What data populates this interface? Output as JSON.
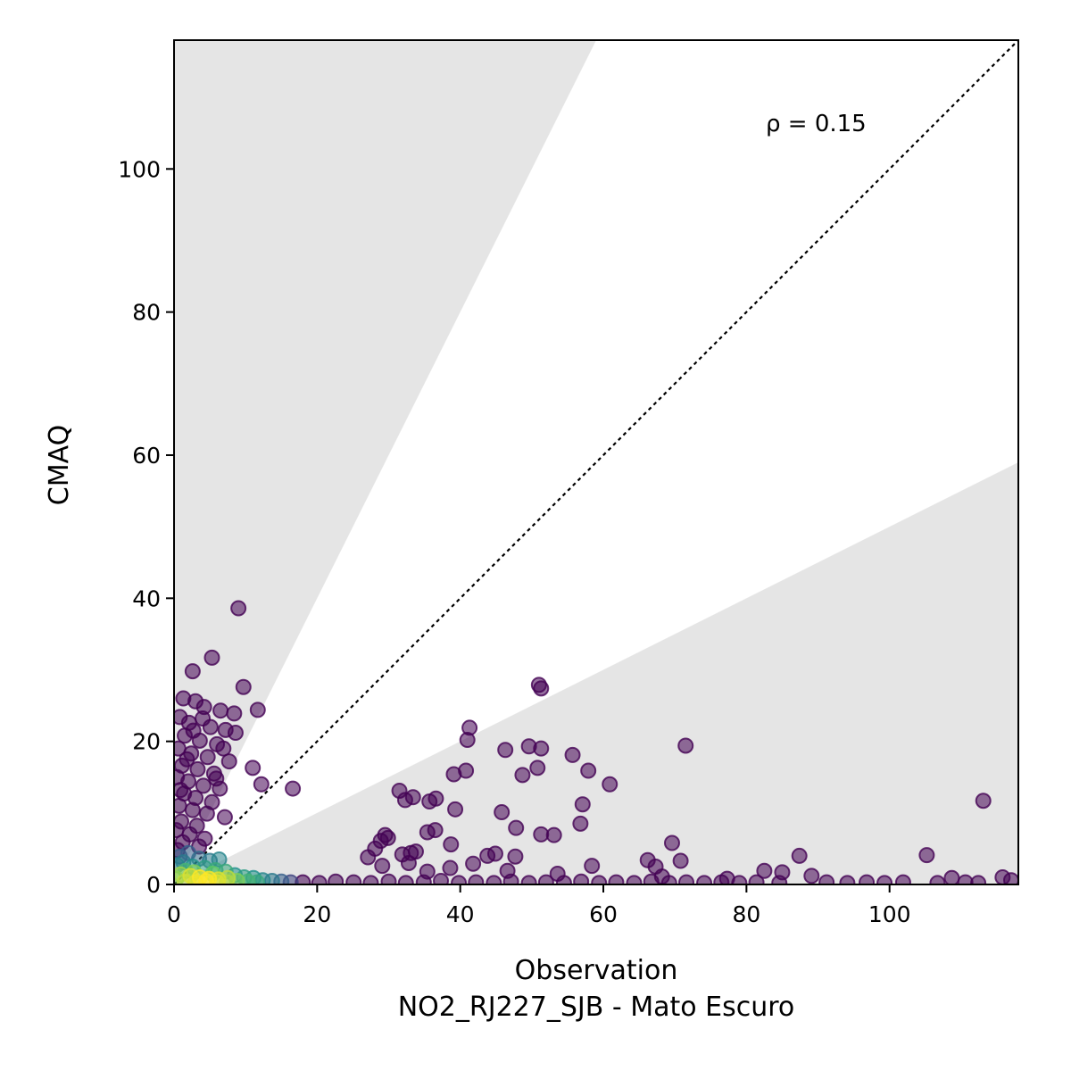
{
  "chart_data": {
    "type": "scatter",
    "xlabel": "Observation",
    "subtitle": "NO2_RJ227_SJB - Mato Escuro",
    "ylabel": "CMAQ",
    "annotation": "ρ = 0.15",
    "xlim": [
      0,
      118
    ],
    "ylim": [
      0,
      118
    ],
    "xticks": [
      0,
      20,
      40,
      60,
      80,
      100
    ],
    "yticks": [
      0,
      20,
      40,
      60,
      80,
      100
    ],
    "reference_line": "1:1 dotted",
    "shaded_regions": "outside factor-of-2 band (y > 2x and y < x/2)",
    "shade_color": "#e5e5e5",
    "colormap": "viridis (point density)",
    "point_colors": {
      "low_density": "#440154",
      "mid_density": "#21918c",
      "high_density": "#fde725"
    },
    "grid": false,
    "legend": "none",
    "points": [
      {
        "x": 9.0,
        "y": 38.6,
        "d": 0
      },
      {
        "x": 5.3,
        "y": 31.7,
        "d": 0
      },
      {
        "x": 2.6,
        "y": 29.8,
        "d": 0
      },
      {
        "x": 9.7,
        "y": 27.6,
        "d": 0
      },
      {
        "x": 11.7,
        "y": 24.4,
        "d": 0
      },
      {
        "x": 1.3,
        "y": 26.0,
        "d": 0
      },
      {
        "x": 3.0,
        "y": 25.6,
        "d": 0
      },
      {
        "x": 4.2,
        "y": 24.8,
        "d": 0
      },
      {
        "x": 6.5,
        "y": 24.3,
        "d": 0
      },
      {
        "x": 8.4,
        "y": 23.9,
        "d": 0
      },
      {
        "x": 0.8,
        "y": 23.4,
        "d": 0
      },
      {
        "x": 2.1,
        "y": 22.6,
        "d": 0
      },
      {
        "x": 5.1,
        "y": 22.0,
        "d": 0
      },
      {
        "x": 7.2,
        "y": 21.6,
        "d": 0
      },
      {
        "x": 8.6,
        "y": 21.2,
        "d": 0
      },
      {
        "x": 1.5,
        "y": 20.8,
        "d": 0
      },
      {
        "x": 3.6,
        "y": 20.1,
        "d": 0
      },
      {
        "x": 6.0,
        "y": 19.6,
        "d": 0
      },
      {
        "x": 0.6,
        "y": 19.0,
        "d": 0
      },
      {
        "x": 2.4,
        "y": 18.3,
        "d": 0
      },
      {
        "x": 4.7,
        "y": 17.8,
        "d": 0
      },
      {
        "x": 7.7,
        "y": 17.2,
        "d": 0
      },
      {
        "x": 1.1,
        "y": 16.6,
        "d": 0
      },
      {
        "x": 3.3,
        "y": 16.1,
        "d": 0
      },
      {
        "x": 5.6,
        "y": 15.5,
        "d": 0
      },
      {
        "x": 11.0,
        "y": 16.3,
        "d": 0
      },
      {
        "x": 0.4,
        "y": 15.0,
        "d": 0
      },
      {
        "x": 2.0,
        "y": 14.4,
        "d": 0
      },
      {
        "x": 4.1,
        "y": 13.8,
        "d": 0
      },
      {
        "x": 6.4,
        "y": 13.4,
        "d": 0
      },
      {
        "x": 12.2,
        "y": 14.0,
        "d": 0
      },
      {
        "x": 16.6,
        "y": 13.4,
        "d": 0
      },
      {
        "x": 1.4,
        "y": 12.7,
        "d": 0
      },
      {
        "x": 3.0,
        "y": 12.1,
        "d": 0
      },
      {
        "x": 5.3,
        "y": 11.5,
        "d": 0
      },
      {
        "x": 0.7,
        "y": 11.0,
        "d": 0
      },
      {
        "x": 2.6,
        "y": 10.4,
        "d": 0
      },
      {
        "x": 4.6,
        "y": 9.9,
        "d": 0
      },
      {
        "x": 7.1,
        "y": 9.4,
        "d": 0
      },
      {
        "x": 1.0,
        "y": 8.8,
        "d": 0
      },
      {
        "x": 3.2,
        "y": 8.2,
        "d": 0
      },
      {
        "x": 0.3,
        "y": 7.6,
        "d": 0
      },
      {
        "x": 2.2,
        "y": 7.0,
        "d": 0
      },
      {
        "x": 4.3,
        "y": 6.4,
        "d": 0
      },
      {
        "x": 1.2,
        "y": 5.9,
        "d": 0
      },
      {
        "x": 3.5,
        "y": 5.3,
        "d": 0
      },
      {
        "x": 0.5,
        "y": 4.8,
        "d": 0
      },
      {
        "x": 2.7,
        "y": 21.5,
        "d": 0
      },
      {
        "x": 4.0,
        "y": 23.2,
        "d": 0
      },
      {
        "x": 6.9,
        "y": 19.0,
        "d": 0
      },
      {
        "x": 1.8,
        "y": 17.5,
        "d": 0
      },
      {
        "x": 5.9,
        "y": 14.8,
        "d": 0
      },
      {
        "x": 0.9,
        "y": 13.2,
        "d": 0
      },
      {
        "x": 51.0,
        "y": 27.9,
        "d": 0
      },
      {
        "x": 51.3,
        "y": 27.4,
        "d": 0
      },
      {
        "x": 41.3,
        "y": 21.9,
        "d": 0
      },
      {
        "x": 41.0,
        "y": 20.2,
        "d": 0
      },
      {
        "x": 49.6,
        "y": 19.3,
        "d": 0
      },
      {
        "x": 51.3,
        "y": 19.0,
        "d": 0
      },
      {
        "x": 71.5,
        "y": 19.4,
        "d": 0
      },
      {
        "x": 46.3,
        "y": 18.8,
        "d": 0
      },
      {
        "x": 55.7,
        "y": 18.1,
        "d": 0
      },
      {
        "x": 50.8,
        "y": 16.3,
        "d": 0
      },
      {
        "x": 57.9,
        "y": 15.9,
        "d": 0
      },
      {
        "x": 40.8,
        "y": 15.9,
        "d": 0
      },
      {
        "x": 39.1,
        "y": 15.4,
        "d": 0
      },
      {
        "x": 48.7,
        "y": 15.3,
        "d": 0
      },
      {
        "x": 60.9,
        "y": 14.0,
        "d": 0
      },
      {
        "x": 31.5,
        "y": 13.1,
        "d": 0
      },
      {
        "x": 33.4,
        "y": 12.2,
        "d": 0
      },
      {
        "x": 32.3,
        "y": 11.8,
        "d": 0
      },
      {
        "x": 36.6,
        "y": 12.0,
        "d": 0
      },
      {
        "x": 35.7,
        "y": 11.6,
        "d": 0
      },
      {
        "x": 57.1,
        "y": 11.2,
        "d": 0
      },
      {
        "x": 39.3,
        "y": 10.5,
        "d": 0
      },
      {
        "x": 45.8,
        "y": 10.1,
        "d": 0
      },
      {
        "x": 113.1,
        "y": 11.7,
        "d": 0
      },
      {
        "x": 56.8,
        "y": 8.5,
        "d": 0
      },
      {
        "x": 47.8,
        "y": 7.9,
        "d": 0
      },
      {
        "x": 36.5,
        "y": 7.6,
        "d": 0
      },
      {
        "x": 35.4,
        "y": 7.3,
        "d": 0
      },
      {
        "x": 51.3,
        "y": 7.0,
        "d": 0
      },
      {
        "x": 53.1,
        "y": 6.9,
        "d": 0
      },
      {
        "x": 29.5,
        "y": 6.9,
        "d": 0
      },
      {
        "x": 29.9,
        "y": 6.5,
        "d": 0
      },
      {
        "x": 28.9,
        "y": 6.1,
        "d": 0
      },
      {
        "x": 38.7,
        "y": 5.6,
        "d": 0
      },
      {
        "x": 69.6,
        "y": 5.8,
        "d": 0
      },
      {
        "x": 28.1,
        "y": 5.0,
        "d": 0
      },
      {
        "x": 33.8,
        "y": 4.6,
        "d": 0
      },
      {
        "x": 33.1,
        "y": 4.4,
        "d": 0
      },
      {
        "x": 31.9,
        "y": 4.2,
        "d": 0
      },
      {
        "x": 44.9,
        "y": 4.3,
        "d": 0
      },
      {
        "x": 43.8,
        "y": 4.0,
        "d": 0
      },
      {
        "x": 27.1,
        "y": 3.8,
        "d": 0
      },
      {
        "x": 47.7,
        "y": 3.9,
        "d": 0
      },
      {
        "x": 87.4,
        "y": 4.0,
        "d": 0
      },
      {
        "x": 105.2,
        "y": 4.1,
        "d": 0
      },
      {
        "x": 66.2,
        "y": 3.4,
        "d": 0
      },
      {
        "x": 70.8,
        "y": 3.3,
        "d": 0
      },
      {
        "x": 32.8,
        "y": 3.0,
        "d": 0
      },
      {
        "x": 41.8,
        "y": 2.9,
        "d": 0
      },
      {
        "x": 29.1,
        "y": 2.6,
        "d": 0
      },
      {
        "x": 58.4,
        "y": 2.6,
        "d": 0
      },
      {
        "x": 67.3,
        "y": 2.5,
        "d": 0
      },
      {
        "x": 38.6,
        "y": 2.3,
        "d": 0
      },
      {
        "x": 46.6,
        "y": 1.9,
        "d": 0
      },
      {
        "x": 82.5,
        "y": 1.9,
        "d": 0
      },
      {
        "x": 35.4,
        "y": 1.8,
        "d": 0
      },
      {
        "x": 85.0,
        "y": 1.7,
        "d": 0
      },
      {
        "x": 53.6,
        "y": 1.5,
        "d": 0
      },
      {
        "x": 89.1,
        "y": 1.2,
        "d": 0
      },
      {
        "x": 68.2,
        "y": 1.1,
        "d": 0
      },
      {
        "x": 115.8,
        "y": 1.0,
        "d": 0
      },
      {
        "x": 108.7,
        "y": 0.9,
        "d": 0
      },
      {
        "x": 77.3,
        "y": 0.8,
        "d": 0
      },
      {
        "x": 117.0,
        "y": 0.6,
        "d": 0
      },
      {
        "x": 18.0,
        "y": 0.3,
        "d": 0
      },
      {
        "x": 20.3,
        "y": 0.2,
        "d": 0
      },
      {
        "x": 22.6,
        "y": 0.4,
        "d": 0
      },
      {
        "x": 25.1,
        "y": 0.3,
        "d": 0
      },
      {
        "x": 27.5,
        "y": 0.2,
        "d": 0
      },
      {
        "x": 30.0,
        "y": 0.4,
        "d": 0
      },
      {
        "x": 32.4,
        "y": 0.2,
        "d": 0
      },
      {
        "x": 34.9,
        "y": 0.3,
        "d": 0
      },
      {
        "x": 37.3,
        "y": 0.5,
        "d": 0
      },
      {
        "x": 39.8,
        "y": 0.2,
        "d": 0
      },
      {
        "x": 42.2,
        "y": 0.3,
        "d": 0
      },
      {
        "x": 44.7,
        "y": 0.2,
        "d": 0
      },
      {
        "x": 47.1,
        "y": 0.4,
        "d": 0
      },
      {
        "x": 49.6,
        "y": 0.2,
        "d": 0
      },
      {
        "x": 52.0,
        "y": 0.3,
        "d": 0
      },
      {
        "x": 54.5,
        "y": 0.2,
        "d": 0
      },
      {
        "x": 56.9,
        "y": 0.4,
        "d": 0
      },
      {
        "x": 59.4,
        "y": 0.2,
        "d": 0
      },
      {
        "x": 61.8,
        "y": 0.3,
        "d": 0
      },
      {
        "x": 64.3,
        "y": 0.2,
        "d": 0
      },
      {
        "x": 66.7,
        "y": 0.4,
        "d": 0
      },
      {
        "x": 69.2,
        "y": 0.2,
        "d": 0
      },
      {
        "x": 71.6,
        "y": 0.3,
        "d": 0
      },
      {
        "x": 74.1,
        "y": 0.2,
        "d": 0
      },
      {
        "x": 76.5,
        "y": 0.3,
        "d": 0
      },
      {
        "x": 79.0,
        "y": 0.2,
        "d": 0
      },
      {
        "x": 81.4,
        "y": 0.3,
        "d": 0
      },
      {
        "x": 84.6,
        "y": 0.2,
        "d": 0
      },
      {
        "x": 91.2,
        "y": 0.3,
        "d": 0
      },
      {
        "x": 94.1,
        "y": 0.2,
        "d": 0
      },
      {
        "x": 96.8,
        "y": 0.3,
        "d": 0
      },
      {
        "x": 99.3,
        "y": 0.2,
        "d": 0
      },
      {
        "x": 101.9,
        "y": 0.3,
        "d": 0
      },
      {
        "x": 106.7,
        "y": 0.2,
        "d": 0
      },
      {
        "x": 110.6,
        "y": 0.3,
        "d": 0
      },
      {
        "x": 112.4,
        "y": 0.2,
        "d": 0
      },
      {
        "x": 0.8,
        "y": 3.9,
        "d": 0.3
      },
      {
        "x": 2.0,
        "y": 4.4,
        "d": 0.3
      },
      {
        "x": 3.5,
        "y": 3.6,
        "d": 0.35
      },
      {
        "x": 1.3,
        "y": 3.1,
        "d": 0.4
      },
      {
        "x": 5.0,
        "y": 3.3,
        "d": 0.4
      },
      {
        "x": 6.3,
        "y": 3.5,
        "d": 0.45
      },
      {
        "x": 0.4,
        "y": 2.7,
        "d": 0.45
      },
      {
        "x": 2.6,
        "y": 2.5,
        "d": 0.5
      },
      {
        "x": 4.3,
        "y": 2.3,
        "d": 0.55
      },
      {
        "x": 5.8,
        "y": 2.0,
        "d": 0.6
      },
      {
        "x": 7.2,
        "y": 1.8,
        "d": 0.6
      },
      {
        "x": 1.6,
        "y": 1.9,
        "d": 0.65
      },
      {
        "x": 8.5,
        "y": 1.3,
        "d": 0.5
      },
      {
        "x": 9.8,
        "y": 1.0,
        "d": 0.55
      },
      {
        "x": 11.1,
        "y": 0.9,
        "d": 0.5
      },
      {
        "x": 12.4,
        "y": 0.6,
        "d": 0.45
      },
      {
        "x": 13.7,
        "y": 0.5,
        "d": 0.4
      },
      {
        "x": 15.0,
        "y": 0.4,
        "d": 0.3
      },
      {
        "x": 16.3,
        "y": 0.3,
        "d": 0.2
      },
      {
        "x": 10.3,
        "y": 0.4,
        "d": 0.65
      },
      {
        "x": 11.6,
        "y": 0.3,
        "d": 0.6
      },
      {
        "x": 0.9,
        "y": 1.4,
        "d": 0.85
      },
      {
        "x": 2.3,
        "y": 1.2,
        "d": 0.95
      },
      {
        "x": 3.6,
        "y": 1.0,
        "d": 1.0
      },
      {
        "x": 4.9,
        "y": 0.8,
        "d": 1.0
      },
      {
        "x": 6.2,
        "y": 0.7,
        "d": 0.95
      },
      {
        "x": 7.5,
        "y": 0.9,
        "d": 0.9
      },
      {
        "x": 8.8,
        "y": 0.5,
        "d": 0.8
      },
      {
        "x": 1.5,
        "y": 0.4,
        "d": 0.9
      },
      {
        "x": 3.0,
        "y": 0.3,
        "d": 0.95
      },
      {
        "x": 4.5,
        "y": 0.5,
        "d": 1.0
      },
      {
        "x": 6.0,
        "y": 0.3,
        "d": 0.95
      },
      {
        "x": 7.4,
        "y": 0.3,
        "d": 0.85
      },
      {
        "x": 0.3,
        "y": 0.8,
        "d": 0.8
      },
      {
        "x": 5.4,
        "y": 1.5,
        "d": 0.75
      },
      {
        "x": 2.8,
        "y": 1.7,
        "d": 0.8
      }
    ]
  }
}
